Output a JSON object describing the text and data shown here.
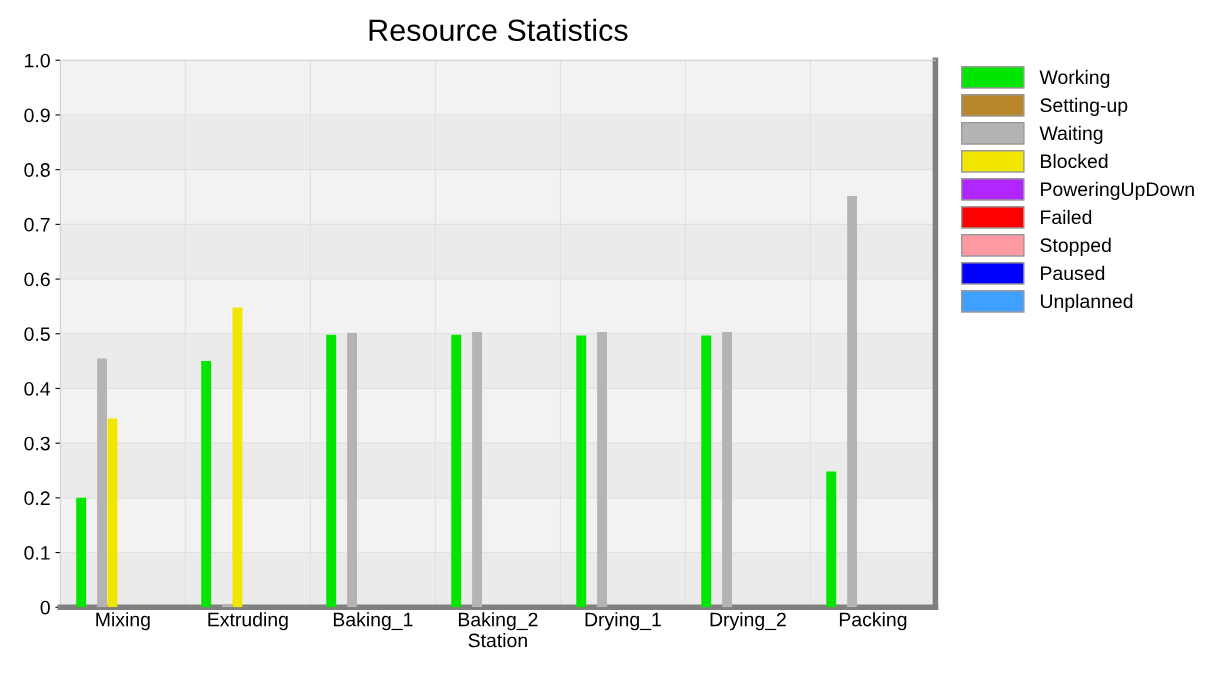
{
  "chart_data": {
    "type": "bar",
    "title": "Resource Statistics",
    "xlabel": "Station",
    "categories": [
      "Mixing",
      "Extruding",
      "Baking_1",
      "Baking_2",
      "Drying_1",
      "Drying_2",
      "Packing"
    ],
    "series": [
      {
        "name": "Working",
        "color": "#00e600",
        "values": [
          0.2,
          0.45,
          0.498,
          0.498,
          0.497,
          0.497,
          0.248
        ]
      },
      {
        "name": "Setting-up",
        "color": "#b8862b",
        "values": [
          0,
          0,
          0,
          0,
          0,
          0,
          0
        ]
      },
      {
        "name": "Waiting",
        "color": "#b4b4b4",
        "values": [
          0.455,
          0.005,
          0.502,
          0.503,
          0.503,
          0.503,
          0.752
        ]
      },
      {
        "name": "Blocked",
        "color": "#f0e600",
        "values": [
          0.345,
          0.548,
          0,
          0,
          0,
          0,
          0
        ]
      },
      {
        "name": "PoweringUpDown",
        "color": "#b026ff",
        "values": [
          0,
          0,
          0,
          0,
          0,
          0,
          0
        ]
      },
      {
        "name": "Failed",
        "color": "#ff0000",
        "values": [
          0,
          0,
          0,
          0,
          0,
          0,
          0
        ]
      },
      {
        "name": "Stopped",
        "color": "#ff9aa2",
        "values": [
          0,
          0,
          0,
          0,
          0,
          0,
          0
        ]
      },
      {
        "name": "Paused",
        "color": "#0000ff",
        "values": [
          0,
          0,
          0,
          0,
          0,
          0,
          0
        ]
      },
      {
        "name": "Unplanned",
        "color": "#3fa0ff",
        "values": [
          0,
          0,
          0,
          0,
          0,
          0,
          0
        ]
      }
    ],
    "ylim": [
      0,
      1.0
    ],
    "yticks": [
      0,
      {
        "value": 0.1,
        "label": "0.1"
      },
      {
        "value": 0.2,
        "label": "0.2"
      },
      {
        "value": 0.3,
        "label": "0.3"
      },
      {
        "value": 0.4,
        "label": "0.4"
      },
      {
        "value": 0.5,
        "label": "0.5"
      },
      {
        "value": 0.6,
        "label": "0.6"
      },
      {
        "value": 0.7,
        "label": "0.7"
      },
      {
        "value": 0.8,
        "label": "0.8"
      },
      {
        "value": 0.9,
        "label": "0.9"
      },
      {
        "value": 1.0,
        "label": "1.0"
      }
    ],
    "grid": true,
    "legend": "top right"
  }
}
